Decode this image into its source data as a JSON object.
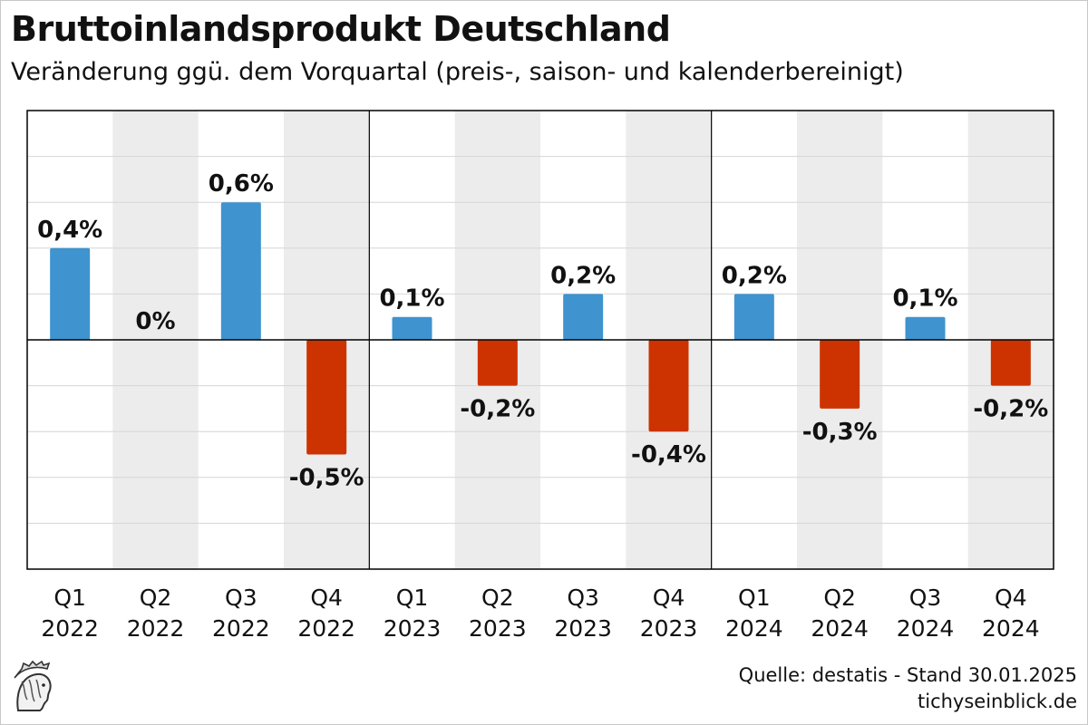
{
  "title": "Bruttoinlandsprodukt Deutschland",
  "subtitle": "Veränderung ggü. dem Vorquartal (preis-, saison- und kalenderbereinigt)",
  "source": "Quelle: destatis - Stand 30.01.2025",
  "site": "tichyseinblick.de",
  "logo_icon": "hermes-head-logo-icon",
  "colors": {
    "positive": "#3f93cf",
    "negative": "#cc3300",
    "band": "#ececec",
    "grid": "#d6d6d6",
    "axis": "#000000"
  },
  "chart_data": {
    "type": "bar",
    "categories": [
      {
        "quarter": "Q1",
        "year": "2022"
      },
      {
        "quarter": "Q2",
        "year": "2022"
      },
      {
        "quarter": "Q3",
        "year": "2022"
      },
      {
        "quarter": "Q4",
        "year": "2022"
      },
      {
        "quarter": "Q1",
        "year": "2023"
      },
      {
        "quarter": "Q2",
        "year": "2023"
      },
      {
        "quarter": "Q3",
        "year": "2023"
      },
      {
        "quarter": "Q4",
        "year": "2023"
      },
      {
        "quarter": "Q1",
        "year": "2024"
      },
      {
        "quarter": "Q2",
        "year": "2024"
      },
      {
        "quarter": "Q3",
        "year": "2024"
      },
      {
        "quarter": "Q4",
        "year": "2024"
      }
    ],
    "values": [
      0.4,
      0,
      0.6,
      -0.5,
      0.1,
      -0.2,
      0.2,
      -0.4,
      0.2,
      -0.3,
      0.1,
      -0.2
    ],
    "data_labels": [
      "0,4%",
      "0%",
      "0,6%",
      "-0,5%",
      "0,1%",
      "-0,2%",
      "0,2%",
      "-0,4%",
      "0,2%",
      "-0,3%",
      "0,1%",
      "-0,2%"
    ],
    "ylim": [
      -1.0,
      1.0
    ],
    "grid": true,
    "grid_step": 0.2,
    "alternating_bands": true,
    "year_separators": true,
    "legend": "none"
  }
}
